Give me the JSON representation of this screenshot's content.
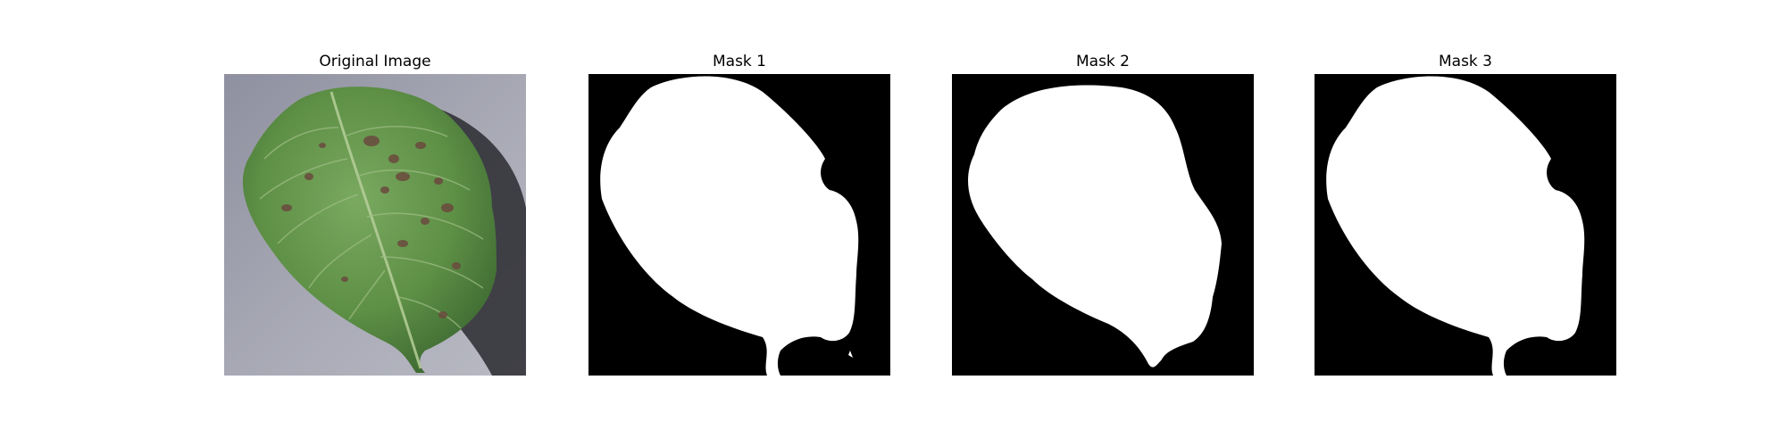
{
  "panels": [
    {
      "title": "Original Image"
    },
    {
      "title": "Mask 1"
    },
    {
      "title": "Mask 2"
    },
    {
      "title": "Mask 3"
    }
  ],
  "colors": {
    "background": "#ffffff",
    "mask_foreground": "#ffffff",
    "mask_background": "#000000",
    "leaf_green": "#5d8f45",
    "leaf_dark": "#3f6b33",
    "disease_spot": "#6b4a3e",
    "surface_gray": "#9a9aa4"
  }
}
